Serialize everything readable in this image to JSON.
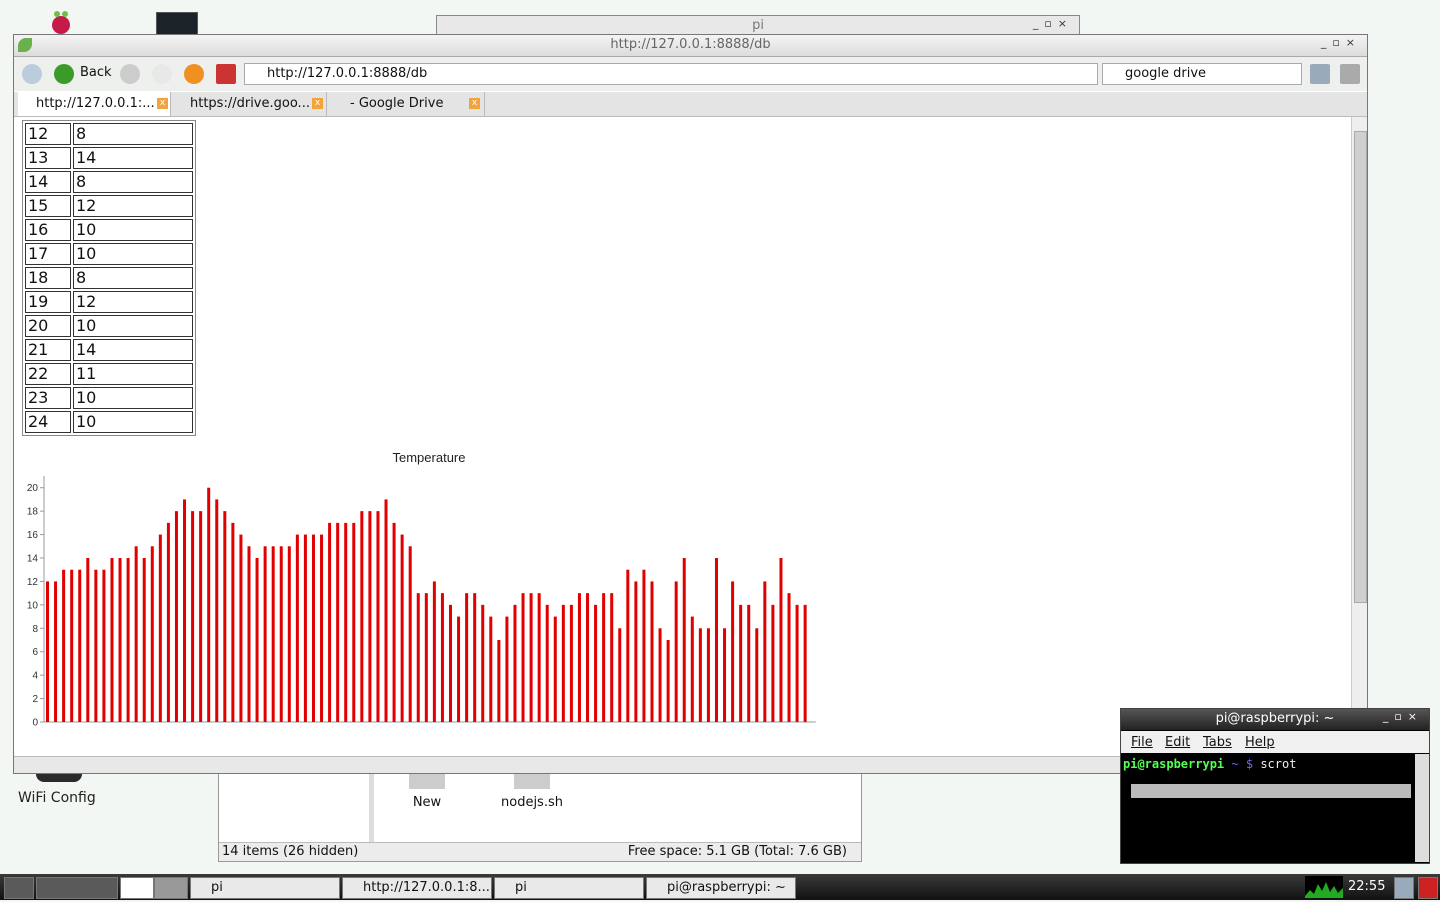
{
  "desktop": {
    "wifi_label": "WiFi Config"
  },
  "bg_window": {
    "title": "pi"
  },
  "file_manager": {
    "files": [
      "New",
      "nodejs.sh"
    ],
    "status_left": "14 items (26 hidden)",
    "status_right": "Free space: 5.1 GB (Total: 7.6 GB)"
  },
  "browser": {
    "title": "http://127.0.0.1:8888/db",
    "back_label": "Back",
    "url": "http://127.0.0.1:8888/db",
    "search": "google drive",
    "tabs": [
      {
        "label": "http://127.0.0.1:...",
        "active": true
      },
      {
        "label": "https://drive.goo...",
        "active": false
      },
      {
        "label": "- Google Drive",
        "active": false
      }
    ]
  },
  "table_rows": [
    [
      "12",
      "8"
    ],
    [
      "13",
      "14"
    ],
    [
      "14",
      "8"
    ],
    [
      "15",
      "12"
    ],
    [
      "16",
      "10"
    ],
    [
      "17",
      "10"
    ],
    [
      "18",
      "8"
    ],
    [
      "19",
      "12"
    ],
    [
      "20",
      "10"
    ],
    [
      "21",
      "14"
    ],
    [
      "22",
      "11"
    ],
    [
      "23",
      "10"
    ],
    [
      "24",
      "10"
    ]
  ],
  "chart_data": {
    "type": "bar",
    "title": "Temperature",
    "ylim": [
      0,
      21
    ],
    "yticks": [
      0,
      2,
      4,
      6,
      8,
      10,
      12,
      14,
      16,
      18,
      20
    ],
    "color": "#e00000",
    "values": [
      12,
      12,
      13,
      13,
      13,
      14,
      13,
      13,
      14,
      14,
      14,
      15,
      14,
      15,
      16,
      17,
      18,
      19,
      18,
      18,
      20,
      19,
      18,
      17,
      16,
      15,
      14,
      15,
      15,
      15,
      15,
      16,
      16,
      16,
      16,
      17,
      17,
      17,
      17,
      18,
      18,
      18,
      19,
      17,
      16,
      15,
      11,
      11,
      12,
      11,
      10,
      9,
      11,
      11,
      10,
      9,
      7,
      9,
      10,
      11,
      11,
      11,
      10,
      9,
      10,
      10,
      11,
      11,
      10,
      11,
      11,
      8,
      13,
      12,
      13,
      12,
      8,
      7,
      12,
      14,
      9,
      8,
      8,
      14,
      8,
      12,
      10,
      10,
      8,
      12,
      10,
      14,
      11,
      10,
      10
    ]
  },
  "terminal": {
    "title": "pi@raspberrypi: ~",
    "menu": [
      "File",
      "Edit",
      "Tabs",
      "Help"
    ],
    "prompt_user": "pi@raspberrypi",
    "prompt_path": "~ $",
    "command": "scrot"
  },
  "taskbar": {
    "tasks": [
      "pi",
      "http://127.0.0.1:8...",
      "pi",
      "pi@raspberrypi: ~"
    ],
    "clock": "22:55"
  }
}
